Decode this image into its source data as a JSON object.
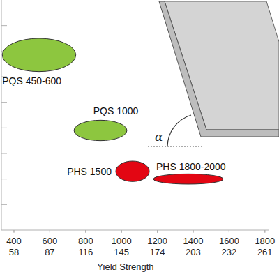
{
  "chart_data": {
    "type": "ellipse",
    "x_label": "Yield Strength",
    "annotation": "α",
    "xlim": [
      330,
      1820
    ],
    "xticks": [
      400,
      600,
      800,
      1000,
      1200,
      1400,
      1600,
      1800
    ],
    "x2lim": [
      47.86,
      263.96
    ],
    "x2ticks": [
      58,
      87,
      116,
      145,
      174,
      203,
      232,
      261
    ],
    "ylim": [
      0,
      9
    ],
    "yticks": [
      1,
      2,
      3,
      4,
      5,
      6,
      7,
      8
    ],
    "tick_labels": "x",
    "grid": false,
    "series": [
      {
        "name": "PQS 450-600",
        "color": "#8dc63f",
        "x": [
          335,
          745
        ],
        "values": [
          6.2,
          7.5
        ]
      },
      {
        "name": "PQS 1000",
        "color": "#8dc63f",
        "x": [
          735,
          1030
        ],
        "values": [
          3.5,
          4.3
        ]
      },
      {
        "name": "PHS 1500",
        "color": "#e30613",
        "x": [
          968,
          1155
        ],
        "values": [
          1.9,
          2.7
        ]
      },
      {
        "name": "PHS 1800-2000",
        "color": "#e30613",
        "x": [
          1178,
          1567
        ],
        "values": [
          1.8,
          2.2
        ]
      }
    ]
  }
}
